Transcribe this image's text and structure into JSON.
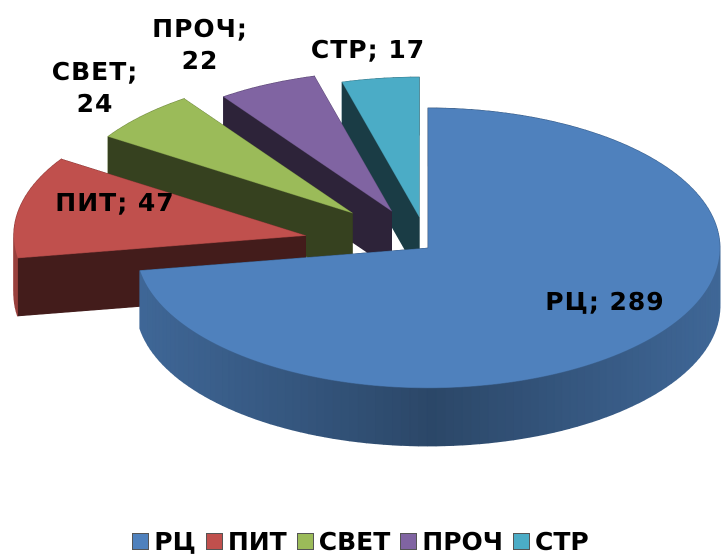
{
  "chart_data": {
    "type": "pie3d",
    "categories": [
      "РЦ",
      "ПИТ",
      "СВЕТ",
      "ПРОЧ",
      "СТР"
    ],
    "values": [
      289,
      47,
      24,
      22,
      17
    ],
    "value_labels": [
      "РЦ; 289",
      "ПИТ; 47",
      "СВЕТ; 24",
      "ПРОЧ; 22",
      "СТР; 17"
    ],
    "colors": [
      "#4f81bd",
      "#c0504d",
      "#9bbb59",
      "#8064a2",
      "#4bacc6"
    ],
    "legend": "bottom"
  }
}
